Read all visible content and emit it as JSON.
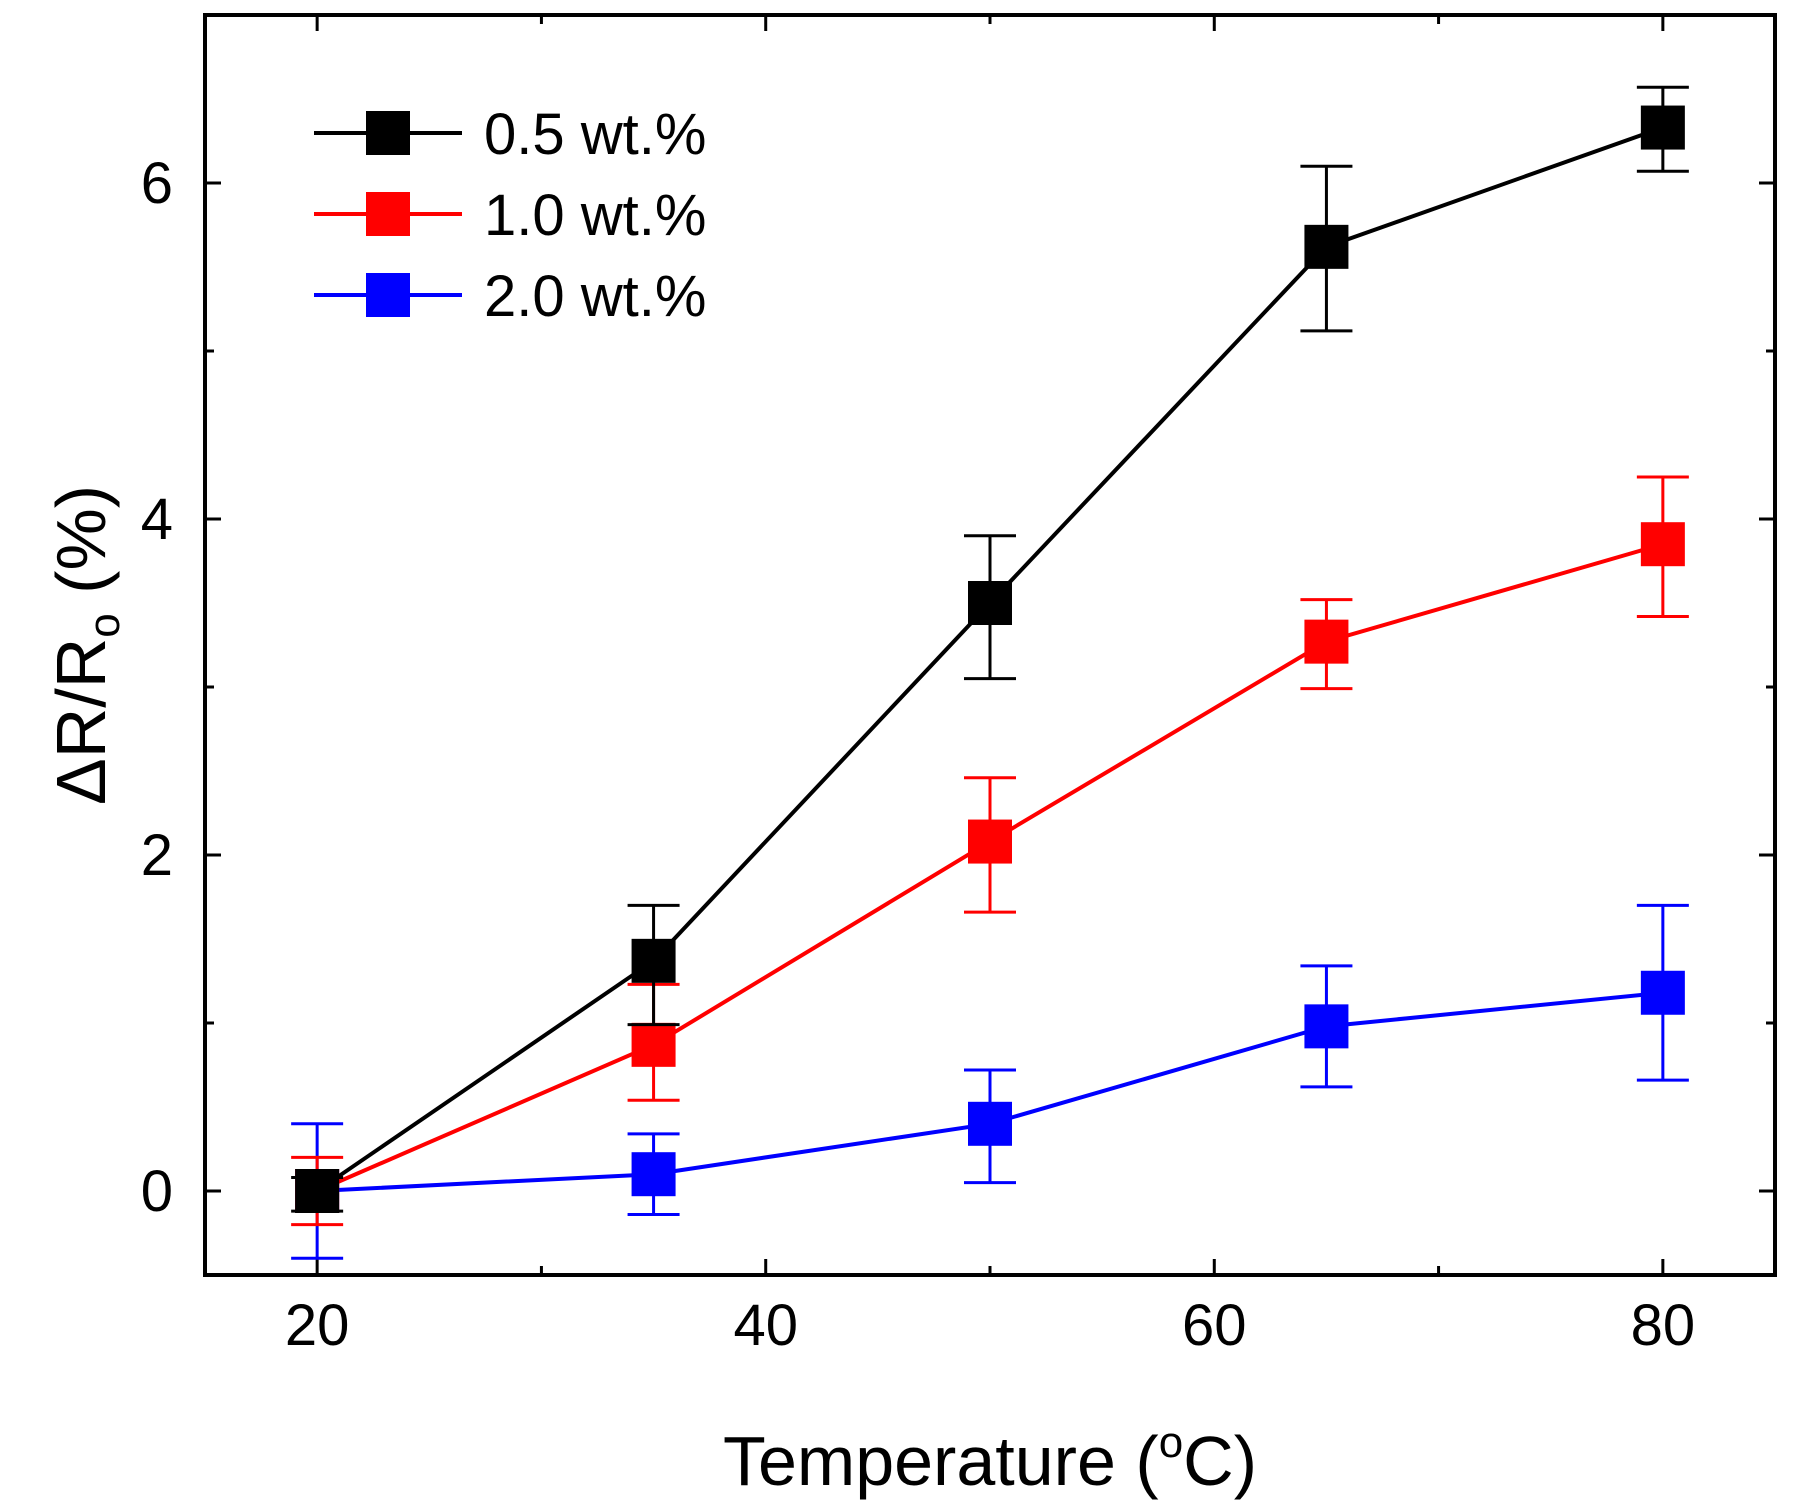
{
  "chart_data": {
    "type": "line",
    "title": "",
    "xlabel_main": "Temperature (",
    "xlabel_sup": "o",
    "xlabel_end": "C)",
    "ylabel_main": "ΔR/R",
    "ylabel_sub": "o",
    "ylabel_end": " (%)",
    "xlim": [
      15,
      85
    ],
    "ylim": [
      -0.5,
      7.0
    ],
    "xticks": [
      20,
      40,
      60,
      80
    ],
    "xtick_labels": [
      "20",
      "40",
      "60",
      "80"
    ],
    "xminor": [
      30,
      50,
      70
    ],
    "yticks": [
      0,
      2,
      4,
      6
    ],
    "ytick_labels": [
      "0",
      "2",
      "4",
      "6"
    ],
    "yminor": [
      1,
      3,
      5
    ],
    "grid": false,
    "legend_position": "top-left",
    "x": [
      20,
      35,
      50,
      65,
      80
    ],
    "series": [
      {
        "name": "0.5 wt.%",
        "color": "#000000",
        "values": [
          0.0,
          1.37,
          3.5,
          5.62,
          6.33
        ],
        "err_upper": [
          0.08,
          0.33,
          0.4,
          0.48,
          0.24
        ],
        "err_lower": [
          0.12,
          0.38,
          0.45,
          0.5,
          0.26
        ]
      },
      {
        "name": "1.0 wt.%",
        "color": "#ff0000",
        "values": [
          0.0,
          0.87,
          2.08,
          3.27,
          3.85
        ],
        "err_upper": [
          0.2,
          0.36,
          0.38,
          0.25,
          0.4
        ],
        "err_lower": [
          0.2,
          0.33,
          0.42,
          0.28,
          0.43
        ]
      },
      {
        "name": "2.0 wt.%",
        "color": "#0000ff",
        "values": [
          0.0,
          0.1,
          0.4,
          0.98,
          1.18
        ],
        "err_upper": [
          0.4,
          0.24,
          0.32,
          0.36,
          0.52
        ],
        "err_lower": [
          0.4,
          0.24,
          0.35,
          0.36,
          0.52
        ]
      }
    ]
  }
}
